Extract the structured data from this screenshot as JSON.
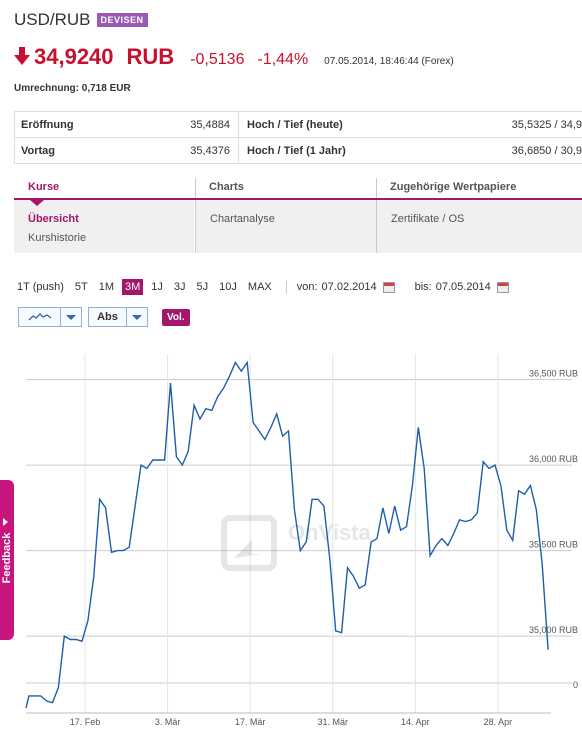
{
  "header": {
    "title": "USD/RUB",
    "badge": "DEVISEN"
  },
  "quote": {
    "price": "34,9240",
    "currency": "RUB",
    "change": "-0,5136",
    "change_pct": "-1,44%",
    "timestamp": "07.05.2014, 18:46:44 (Forex)",
    "color": "#c8102e"
  },
  "conversion": "Umrechnung: 0,718 EUR",
  "stats": [
    {
      "label_left": "Eröffnung",
      "value_left": "35,4884",
      "label_right": "Hoch / Tief (heute)",
      "value_right": "35,5325 / 34,9"
    },
    {
      "label_left": "Vortag",
      "value_left": "35,4376",
      "label_right": "Hoch / Tief (1 Jahr)",
      "value_right": "36,6850 / 30,9"
    }
  ],
  "nav": {
    "kurse": {
      "label": "Kurse",
      "items": [
        "Übersicht",
        "Kurshistorie"
      ]
    },
    "charts": {
      "label": "Charts",
      "items": [
        "Chartanalyse"
      ]
    },
    "wertpapiere": {
      "label": "Zugehörige Wertpapiere",
      "items": [
        "Zertifikate / OS"
      ]
    }
  },
  "ranges": {
    "items": [
      "1T (push)",
      "5T",
      "1M",
      "3M",
      "1J",
      "3J",
      "5J",
      "10J",
      "MAX"
    ],
    "active": "3M",
    "from_label": "von:",
    "from_value": "07.02.2014",
    "to_label": "bis:",
    "to_value": "07.05.2014"
  },
  "controls": {
    "scale": "Abs",
    "volume": "Vol.",
    "line_icon": "line-chart-icon"
  },
  "watermark": "OnVista",
  "feedback": "Feedback",
  "accent": "#a4166c",
  "chart_data": {
    "type": "line",
    "y_tick_labels": [
      "36,500 RUB",
      "36,000 RUB",
      "35,500 RUB",
      "35,000 RUB",
      "0"
    ],
    "y_ticks": [
      36.5,
      36.0,
      35.5,
      35.0
    ],
    "ylim": [
      34.55,
      36.65
    ],
    "x_tick_labels": [
      "17. Feb",
      "3. Mär",
      "17. Mär",
      "31. Mär",
      "14. Apr",
      "28. Apr"
    ],
    "x_tick_days": [
      10,
      24,
      38,
      52,
      66,
      80
    ],
    "x_range_days": [
      0,
      89
    ],
    "series": [
      {
        "color": "#1f5ea8",
        "points": [
          [
            0,
            34.58
          ],
          [
            0.5,
            34.65
          ],
          [
            1.5,
            34.65
          ],
          [
            2.5,
            34.65
          ],
          [
            3.5,
            34.62
          ],
          [
            4.5,
            34.61
          ],
          [
            5.5,
            34.7
          ],
          [
            6.5,
            35.0
          ],
          [
            7.5,
            34.98
          ],
          [
            8.5,
            34.98
          ],
          [
            9.5,
            34.97
          ],
          [
            10.5,
            35.09
          ],
          [
            11.5,
            35.35
          ],
          [
            12.5,
            35.8
          ],
          [
            13.5,
            35.75
          ],
          [
            14.5,
            35.49
          ],
          [
            15.5,
            35.5
          ],
          [
            16.5,
            35.5
          ],
          [
            17.5,
            35.52
          ],
          [
            18.5,
            35.76
          ],
          [
            19.5,
            36.0
          ],
          [
            20.5,
            35.98
          ],
          [
            21.5,
            36.03
          ],
          [
            22.5,
            36.03
          ],
          [
            23.5,
            36.03
          ],
          [
            24.5,
            36.48
          ],
          [
            25.5,
            36.05
          ],
          [
            26.5,
            36.0
          ],
          [
            27.5,
            36.08
          ],
          [
            28.5,
            36.35
          ],
          [
            29.5,
            36.27
          ],
          [
            30.5,
            36.33
          ],
          [
            31.5,
            36.32
          ],
          [
            32.5,
            36.4
          ],
          [
            33.5,
            36.45
          ],
          [
            34.5,
            36.52
          ],
          [
            35.5,
            36.6
          ],
          [
            36.5,
            36.55
          ],
          [
            37.5,
            36.6
          ],
          [
            38.5,
            36.25
          ],
          [
            39.5,
            36.2
          ],
          [
            40.5,
            36.15
          ],
          [
            41.5,
            36.22
          ],
          [
            42.5,
            36.3
          ],
          [
            43.5,
            36.17
          ],
          [
            44.5,
            36.2
          ],
          [
            45.5,
            35.74
          ],
          [
            46.5,
            35.5
          ],
          [
            47.5,
            35.55
          ],
          [
            48.5,
            35.8
          ],
          [
            49.5,
            35.8
          ],
          [
            50.5,
            35.76
          ],
          [
            51.5,
            35.45
          ],
          [
            52.5,
            35.03
          ],
          [
            53.5,
            35.02
          ],
          [
            54.5,
            35.4
          ],
          [
            55.5,
            35.35
          ],
          [
            56.5,
            35.28
          ],
          [
            57.5,
            35.3
          ],
          [
            58.5,
            35.55
          ],
          [
            59.5,
            35.57
          ],
          [
            60.5,
            35.75
          ],
          [
            61.5,
            35.6
          ],
          [
            62.5,
            35.76
          ],
          [
            63.5,
            35.62
          ],
          [
            64.5,
            35.64
          ],
          [
            65.5,
            35.88
          ],
          [
            66.5,
            36.22
          ],
          [
            67.5,
            35.98
          ],
          [
            68.5,
            35.47
          ],
          [
            69.5,
            35.53
          ],
          [
            70.5,
            35.57
          ],
          [
            71.5,
            35.53
          ],
          [
            72.5,
            35.6
          ],
          [
            73.5,
            35.68
          ],
          [
            74.5,
            35.67
          ],
          [
            75.5,
            35.68
          ],
          [
            76.5,
            35.72
          ],
          [
            77.5,
            36.02
          ],
          [
            78.5,
            35.98
          ],
          [
            79.5,
            36.0
          ],
          [
            80.5,
            35.88
          ],
          [
            81.5,
            35.62
          ],
          [
            82.5,
            35.56
          ],
          [
            83.5,
            35.85
          ],
          [
            84.5,
            35.83
          ],
          [
            85.5,
            35.88
          ],
          [
            86.5,
            35.74
          ],
          [
            87.5,
            35.42
          ],
          [
            88.5,
            34.92
          ]
        ]
      }
    ],
    "grid": true,
    "gridline_color": "#cccccc"
  }
}
